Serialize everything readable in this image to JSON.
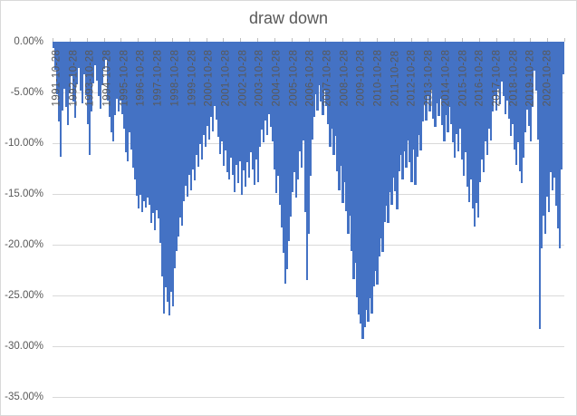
{
  "chart": {
    "title": "draw down"
  },
  "chart_data": {
    "type": "bar",
    "title": "draw down",
    "xlabel": "",
    "ylabel": "",
    "unit": "%",
    "ylim": [
      -35,
      0
    ],
    "grid": "horizontal",
    "legend": "none",
    "y_ticks": [
      "0.00%",
      "-5.00%",
      "-10.00%",
      "-15.00%",
      "-20.00%",
      "-25.00%",
      "-30.00%",
      "-35.00%"
    ],
    "x_labels": [
      "1991-10-28",
      "1992-10-28",
      "1993-10-28",
      "1994-10-28",
      "1995-10-28",
      "1996-10-28",
      "1997-10-28",
      "1998-10-28",
      "1999-10-28",
      "2000-10-28",
      "2001-10-28",
      "2002-10-28",
      "2003-10-28",
      "2004-10-28",
      "2005-10-28",
      "2006-10-28",
      "2007-10-28",
      "2008-10-28",
      "2009-10-28",
      "2010-10-28",
      "2011-10-28",
      "2012-10-28",
      "2013-10-28",
      "2014-10-28",
      "2015-10-28",
      "2016-10-28",
      "2017-10-28",
      "2018-10-28",
      "2019-10-28",
      "2020-10-28"
    ],
    "values": [
      -0.6,
      -2.8,
      -5.2,
      -7.9,
      -11.3,
      -6.8,
      -4.6,
      -6.4,
      -8.2,
      -5.1,
      -3.4,
      -5.9,
      -7.5,
      -4.2,
      -2.6,
      -4.8,
      -6.1,
      -3.2,
      -5.3,
      -8.1,
      -11.2,
      -6.9,
      -4.1,
      -2.3,
      -3.8,
      -5.4,
      -6.6,
      -4.3,
      -2.7,
      -1.8,
      -5.8,
      -7.4,
      -8.9,
      -9.8,
      -7.2,
      -5.6,
      -6.9,
      -5.8,
      -7.1,
      -8.6,
      -10.9,
      -11.8,
      -8.9,
      -10.6,
      -12.4,
      -13.6,
      -15.2,
      -16.4,
      -15.1,
      -16.8,
      -15.7,
      -16.3,
      -15.4,
      -16.1,
      -17.9,
      -16.9,
      -18.6,
      -16.6,
      -17.4,
      -19.8,
      -23.1,
      -26.8,
      -24.2,
      -25.6,
      -27.0,
      -24.6,
      -26.1,
      -22.3,
      -20.6,
      -19.2,
      -17.3,
      -18.1,
      -15.7,
      -14.2,
      -15.3,
      -13.1,
      -14.6,
      -12.6,
      -13.7,
      -11.2,
      -12.3,
      -10.1,
      -11.6,
      -9.2,
      -10.4,
      -8.3,
      -9.6,
      -7.4,
      -8.8,
      -6.3,
      -7.7,
      -9.4,
      -11.1,
      -9.8,
      -12.2,
      -10.7,
      -12.9,
      -13.6,
      -11.4,
      -13.1,
      -14.8,
      -12.1,
      -13.9,
      -11.8,
      -15.1,
      -12.7,
      -14.3,
      -11.9,
      -13.4,
      -10.9,
      -12.6,
      -14.1,
      -11.6,
      -13.8,
      -10.4,
      -8.7,
      -9.9,
      -7.8,
      -9.2,
      -7.1,
      -8.4,
      -9.8,
      -12.6,
      -14.9,
      -13.2,
      -16.1,
      -18.3,
      -20.8,
      -23.8,
      -22.4,
      -19.6,
      -17.2,
      -14.8,
      -12.9,
      -15.4,
      -13.6,
      -10.8,
      -12.4,
      -9.7,
      -16.8,
      -23.5,
      -18.9,
      -13.2,
      -9.6,
      -7.4,
      -5.2,
      -6.8,
      -4.3,
      -5.9,
      -7.2,
      -4.8,
      -6.3,
      -8.1,
      -10.4,
      -8.6,
      -11.2,
      -9.3,
      -12.8,
      -14.6,
      -12.2,
      -15.9,
      -13.8,
      -16.7,
      -18.9,
      -17.1,
      -20.6,
      -23.4,
      -21.8,
      -25.2,
      -26.9,
      -27.8,
      -29.3,
      -28.1,
      -26.4,
      -27.6,
      -25.3,
      -26.8,
      -24.1,
      -22.6,
      -23.9,
      -21.2,
      -19.4,
      -20.7,
      -17.8,
      -16.2,
      -17.9,
      -14.8,
      -16.1,
      -13.4,
      -14.7,
      -16.5,
      -12.8,
      -11.2,
      -13.6,
      -10.8,
      -12.4,
      -9.7,
      -11.9,
      -13.8,
      -10.6,
      -14.1,
      -11.3,
      -9.2,
      -10.7,
      -7.9,
      -6.2,
      -7.8,
      -5.4,
      -6.9,
      -4.7,
      -7.6,
      -8.4,
      -6.1,
      -7.3,
      -5.6,
      -8.2,
      -9.8,
      -7.2,
      -8.9,
      -6.4,
      -8.1,
      -9.9,
      -11.4,
      -9.1,
      -10.8,
      -8.6,
      -11.6,
      -13.2,
      -10.9,
      -14.3,
      -15.8,
      -13.6,
      -16.4,
      -18.2,
      -15.9,
      -17.3,
      -13.8,
      -11.6,
      -12.9,
      -9.8,
      -11.2,
      -8.6,
      -9.7,
      -6.9,
      -5.3,
      -6.8,
      -4.6,
      -6.2,
      -3.9,
      -5.4,
      -7.1,
      -5.8,
      -7.6,
      -9.3,
      -8.1,
      -10.6,
      -12.1,
      -9.9,
      -12.8,
      -13.9,
      -11.4,
      -8.9,
      -6.7,
      -8.3,
      -9.8,
      -6.4,
      -2.9,
      -4.8,
      -9.6,
      -28.3,
      -20.4,
      -17.1,
      -18.9,
      -15.3,
      -16.8,
      -12.9,
      -14.6,
      -13.4,
      -16.2,
      -18.4,
      -20.4,
      -12.6,
      -3.2
    ],
    "colors": {
      "bar": "#4472C4",
      "gridline": "#D9D9D9",
      "axis_text": "#595959",
      "title_text": "#595959",
      "tick": "#BFBFBF",
      "border": "#D9D9D9",
      "background": "#FFFFFF"
    }
  }
}
